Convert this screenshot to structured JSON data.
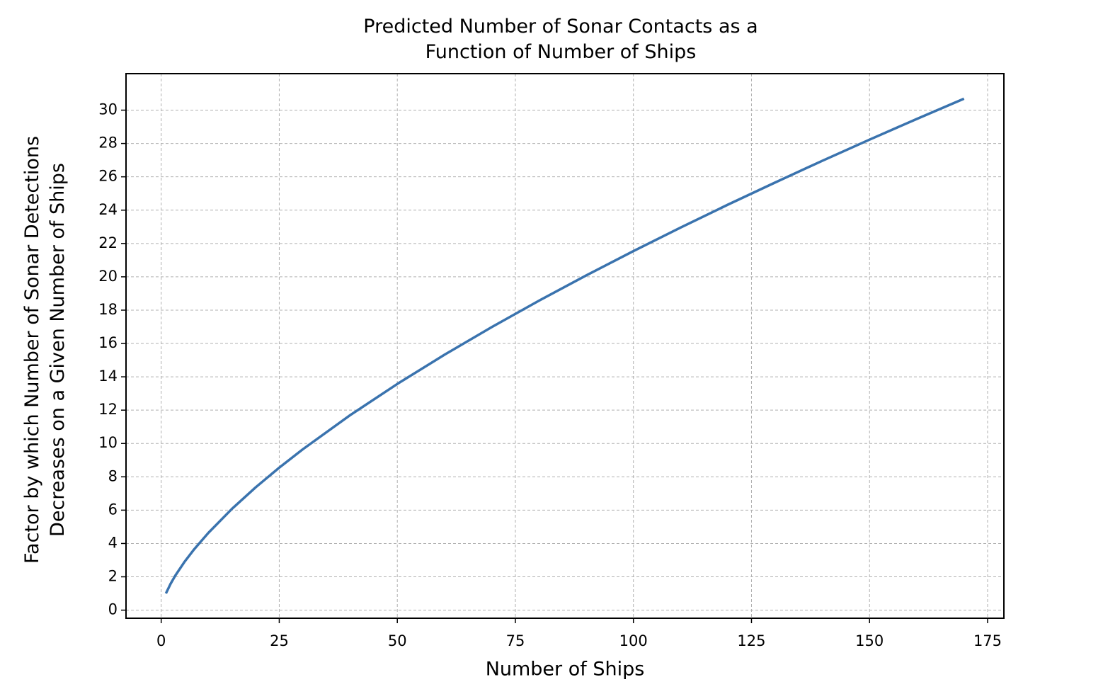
{
  "chart_data": {
    "type": "line",
    "title": "Predicted Number of Sonar Contacts as a\nFunction of Number of Ships",
    "x_label": "Number of Ships",
    "y_label": "Factor by which Number of Sonar Detections\nDecreases on a Given Number of Ships",
    "x": [
      1,
      2,
      3,
      5,
      7,
      10,
      15,
      20,
      25,
      30,
      40,
      50,
      60,
      70,
      80,
      90,
      100,
      110,
      120,
      130,
      140,
      150,
      160,
      170
    ],
    "series": [
      {
        "color": "#3a73ae",
        "values": [
          1,
          1.587,
          2.08,
          2.924,
          3.659,
          4.642,
          6.082,
          7.368,
          8.55,
          9.655,
          11.696,
          13.572,
          15.326,
          16.985,
          18.566,
          20.083,
          21.544,
          22.956,
          24.329,
          25.657,
          26.962,
          28.231,
          29.472,
          30.688
        ]
      }
    ],
    "xlim": [
      -7.45,
      178.45
    ],
    "ylim": [
      -0.485,
      32.19
    ],
    "xticks": [
      0,
      25,
      50,
      75,
      100,
      125,
      150,
      175
    ],
    "yticks": [
      0,
      2,
      4,
      6,
      8,
      10,
      12,
      14,
      16,
      18,
      20,
      22,
      24,
      26,
      28,
      30
    ],
    "grid": true
  }
}
